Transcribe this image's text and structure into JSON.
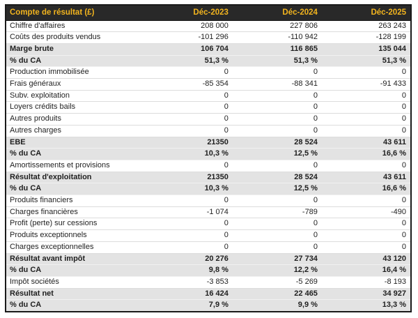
{
  "theme": {
    "header_bg": "#292929",
    "header_text": "#F2B41E",
    "band_bg": "#E3E3E3",
    "text": "#1F1F1F",
    "border": "#1A1A1A",
    "separator": "#DCDCDC",
    "band_separator": "#F1F1F1",
    "page_bg": "#FFFFFF"
  },
  "table": {
    "title": "Compte de résultat (£)",
    "columns": [
      "Déc-2023",
      "Déc-2024",
      "Déc-2025"
    ],
    "rows": [
      {
        "label": "Chiffre d'affaires",
        "values": [
          "208 000",
          "227 806",
          "263 243"
        ],
        "emphasis": false
      },
      {
        "label": "Coûts des produits vendus",
        "values": [
          "-101 296",
          "-110 942",
          "-128 199"
        ],
        "emphasis": false
      },
      {
        "label": "Marge brute",
        "values": [
          "106 704",
          "116 865",
          "135 044"
        ],
        "emphasis": true
      },
      {
        "label": "% du CA",
        "values": [
          "51,3 %",
          "51,3 %",
          "51,3 %"
        ],
        "emphasis": true
      },
      {
        "label": "Production immobilisée",
        "values": [
          "0",
          "0",
          "0"
        ],
        "emphasis": false
      },
      {
        "label": "Frais généraux",
        "values": [
          "-85 354",
          "-88 341",
          "-91 433"
        ],
        "emphasis": false
      },
      {
        "label": "Subv. exploitation",
        "values": [
          "0",
          "0",
          "0"
        ],
        "emphasis": false
      },
      {
        "label": "Loyers crédits bails",
        "values": [
          "0",
          "0",
          "0"
        ],
        "emphasis": false
      },
      {
        "label": "Autres produits",
        "values": [
          "0",
          "0",
          "0"
        ],
        "emphasis": false
      },
      {
        "label": "Autres charges",
        "values": [
          "0",
          "0",
          "0"
        ],
        "emphasis": false
      },
      {
        "label": "EBE",
        "values": [
          "21350",
          "28 524",
          "43 611"
        ],
        "emphasis": true
      },
      {
        "label": "% du CA",
        "values": [
          "10,3 %",
          "12,5 %",
          "16,6 %"
        ],
        "emphasis": true
      },
      {
        "label": "Amortissements et provisions",
        "values": [
          "0",
          "0",
          "0"
        ],
        "emphasis": false
      },
      {
        "label": "Résultat d'exploitation",
        "values": [
          "21350",
          "28 524",
          "43 611"
        ],
        "emphasis": true
      },
      {
        "label": "% du CA",
        "values": [
          "10,3 %",
          "12,5 %",
          "16,6 %"
        ],
        "emphasis": true
      },
      {
        "label": "Produits financiers",
        "values": [
          "0",
          "0",
          "0"
        ],
        "emphasis": false
      },
      {
        "label": "Charges financières",
        "values": [
          "-1 074",
          "-789",
          "-490"
        ],
        "emphasis": false
      },
      {
        "label": "Profit (perte) sur cessions",
        "values": [
          "0",
          "0",
          "0"
        ],
        "emphasis": false
      },
      {
        "label": "Produits exceptionnels",
        "values": [
          "0",
          "0",
          "0"
        ],
        "emphasis": false
      },
      {
        "label": "Charges exceptionnelles",
        "values": [
          "0",
          "0",
          "0"
        ],
        "emphasis": false
      },
      {
        "label": "Résultat avant impôt",
        "values": [
          "20 276",
          "27 734",
          "43 120"
        ],
        "emphasis": true
      },
      {
        "label": "% du CA",
        "values": [
          "9,8 %",
          "12,2 %",
          "16,4 %"
        ],
        "emphasis": true
      },
      {
        "label": "Impôt sociétés",
        "values": [
          "-3 853",
          "-5 269",
          "-8 193"
        ],
        "emphasis": false
      },
      {
        "label": "Résultat net",
        "values": [
          "16 424",
          "22 465",
          "34 927"
        ],
        "emphasis": true
      },
      {
        "label": "% du CA",
        "values": [
          "7,9 %",
          "9,9 %",
          "13,3 %"
        ],
        "emphasis": true
      }
    ]
  }
}
